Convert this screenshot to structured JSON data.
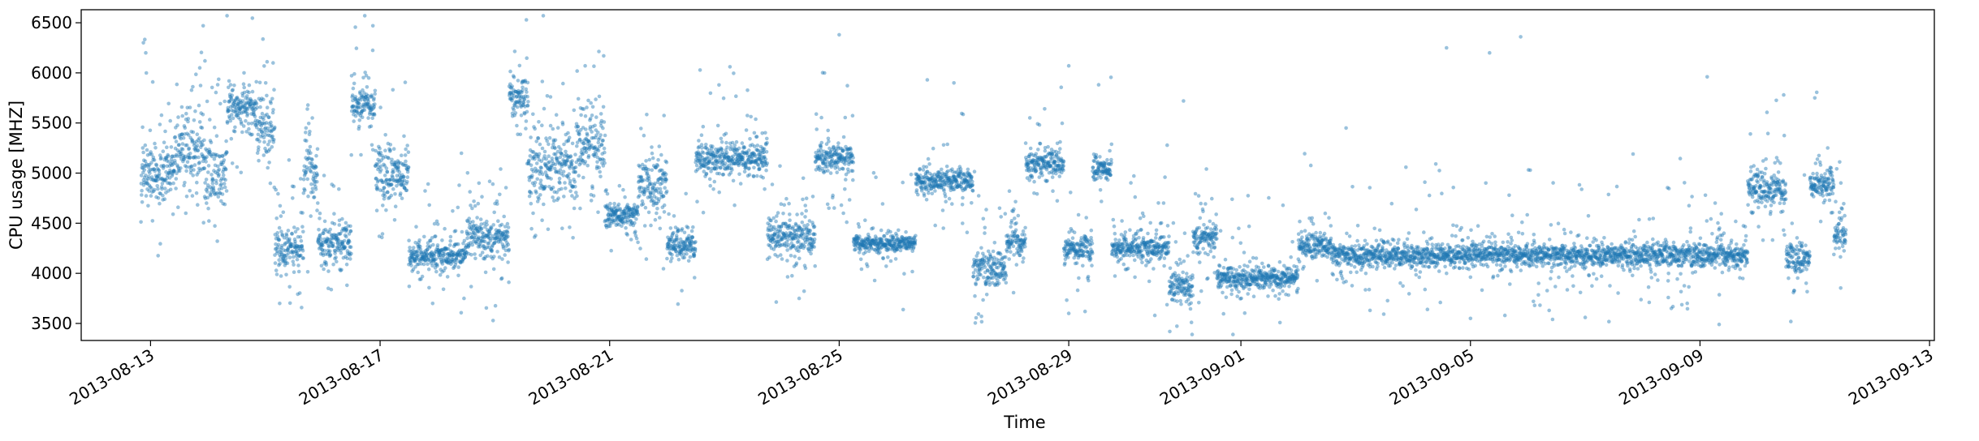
{
  "chart_data": {
    "type": "scatter",
    "title": "",
    "xlabel": "Time",
    "ylabel": "CPU usage [MHZ]",
    "x_axis_type": "date",
    "xlim": [
      "2013-08-11T19:00",
      "2013-09-13T02:00"
    ],
    "ylim": [
      3330,
      6630
    ],
    "x_ticks": [
      "2013-08-13",
      "2013-08-17",
      "2013-08-21",
      "2013-08-25",
      "2013-08-29",
      "2013-09-01",
      "2013-09-05",
      "2013-09-09",
      "2013-09-13"
    ],
    "y_ticks": [
      3500,
      4000,
      4500,
      5000,
      5500,
      6000,
      6500
    ],
    "grid": false,
    "legend": "none",
    "marker_color": "#1f77b4",
    "marker_alpha": 0.45,
    "series": [
      {
        "x_start": "2013-08-12T20:00",
        "x_end": "2013-09-11T13:00",
        "sampling": "every 5 minutes",
        "level_profile": [
          {
            "from": "2013-08-12T20:00",
            "to": "2013-08-13T10:00",
            "level": 5000,
            "spread": 320
          },
          {
            "from": "2013-08-13T10:00",
            "to": "2013-08-13T22:00",
            "level": 5250,
            "spread": 380
          },
          {
            "from": "2013-08-13T22:00",
            "to": "2013-08-14T08:00",
            "level": 5000,
            "spread": 340
          },
          {
            "from": "2013-08-14T08:00",
            "to": "2013-08-14T20:00",
            "level": 5650,
            "spread": 220
          },
          {
            "from": "2013-08-14T20:00",
            "to": "2013-08-15T04:00",
            "level": 5450,
            "spread": 340
          },
          {
            "from": "2013-08-15T04:00",
            "to": "2013-08-15T16:00",
            "level": 4250,
            "spread": 220
          },
          {
            "from": "2013-08-15T16:00",
            "to": "2013-08-15T22:00",
            "level": 5000,
            "spread": 300
          },
          {
            "from": "2013-08-15T22:00",
            "to": "2013-08-16T12:00",
            "level": 4300,
            "spread": 240
          },
          {
            "from": "2013-08-16T12:00",
            "to": "2013-08-16T22:00",
            "level": 5700,
            "spread": 220
          },
          {
            "from": "2013-08-16T22:00",
            "to": "2013-08-17T12:00",
            "level": 5000,
            "spread": 300
          },
          {
            "from": "2013-08-17T12:00",
            "to": "2013-08-18T12:00",
            "level": 4180,
            "spread": 130
          },
          {
            "from": "2013-08-18T12:00",
            "to": "2013-08-19T06:00",
            "level": 4350,
            "spread": 230
          },
          {
            "from": "2013-08-19T06:00",
            "to": "2013-08-19T14:00",
            "level": 5750,
            "spread": 200
          },
          {
            "from": "2013-08-19T14:00",
            "to": "2013-08-20T10:00",
            "level": 5100,
            "spread": 380
          },
          {
            "from": "2013-08-20T10:00",
            "to": "2013-08-20T22:00",
            "level": 5300,
            "spread": 420
          },
          {
            "from": "2013-08-20T22:00",
            "to": "2013-08-21T12:00",
            "level": 4580,
            "spread": 120
          },
          {
            "from": "2013-08-21T12:00",
            "to": "2013-08-22T00:00",
            "level": 4900,
            "spread": 300
          },
          {
            "from": "2013-08-22T00:00",
            "to": "2013-08-22T12:00",
            "level": 4280,
            "spread": 140
          },
          {
            "from": "2013-08-22T12:00",
            "to": "2013-08-23T18:00",
            "level": 5150,
            "spread": 170
          },
          {
            "from": "2013-08-23T18:00",
            "to": "2013-08-24T14:00",
            "level": 4350,
            "spread": 220
          },
          {
            "from": "2013-08-24T14:00",
            "to": "2013-08-25T06:00",
            "level": 5150,
            "spread": 160
          },
          {
            "from": "2013-08-25T06:00",
            "to": "2013-08-26T08:00",
            "level": 4300,
            "spread": 90
          },
          {
            "from": "2013-08-26T08:00",
            "to": "2013-08-27T08:00",
            "level": 4920,
            "spread": 110
          },
          {
            "from": "2013-08-27T08:00",
            "to": "2013-08-27T22:00",
            "level": 4050,
            "spread": 180
          },
          {
            "from": "2013-08-27T22:00",
            "to": "2013-08-28T06:00",
            "level": 4300,
            "spread": 150
          },
          {
            "from": "2013-08-28T06:00",
            "to": "2013-08-28T22:00",
            "level": 5100,
            "spread": 160
          },
          {
            "from": "2013-08-28T22:00",
            "to": "2013-08-29T10:00",
            "level": 4250,
            "spread": 140
          },
          {
            "from": "2013-08-29T10:00",
            "to": "2013-08-29T18:00",
            "level": 5050,
            "spread": 140
          },
          {
            "from": "2013-08-29T18:00",
            "to": "2013-08-30T18:00",
            "level": 4260,
            "spread": 120
          },
          {
            "from": "2013-08-30T18:00",
            "to": "2013-08-31T04:00",
            "level": 3850,
            "spread": 180
          },
          {
            "from": "2013-08-31T04:00",
            "to": "2013-08-31T14:00",
            "level": 4350,
            "spread": 180
          },
          {
            "from": "2013-08-31T14:00",
            "to": "2013-09-02T00:00",
            "level": 3960,
            "spread": 110
          },
          {
            "from": "2013-09-02T00:00",
            "to": "2013-09-02T14:00",
            "level": 4280,
            "spread": 130
          },
          {
            "from": "2013-09-02T14:00",
            "to": "2013-09-09T20:00",
            "level": 4180,
            "spread": 120
          },
          {
            "from": "2013-09-09T20:00",
            "to": "2013-09-10T12:00",
            "level": 4850,
            "spread": 220
          },
          {
            "from": "2013-09-10T12:00",
            "to": "2013-09-10T22:00",
            "level": 4150,
            "spread": 160
          },
          {
            "from": "2013-09-10T22:00",
            "to": "2013-09-11T08:00",
            "level": 4900,
            "spread": 160
          },
          {
            "from": "2013-09-11T08:00",
            "to": "2013-09-11T13:00",
            "level": 4400,
            "spread": 220
          }
        ],
        "outliers": [
          {
            "x": "2013-08-13T22:00",
            "y": 6470
          },
          {
            "x": "2013-08-16T21:00",
            "y": 6470
          },
          {
            "x": "2013-08-25T00:00",
            "y": 6380
          },
          {
            "x": "2013-09-04T14:00",
            "y": 6250
          },
          {
            "x": "2013-09-05T08:00",
            "y": 6200
          },
          {
            "x": "2013-09-05T21:00",
            "y": 6360
          },
          {
            "x": "2013-08-29T00:00",
            "y": 6070
          },
          {
            "x": "2013-09-09T03:00",
            "y": 5960
          },
          {
            "x": "2013-09-10T11:00",
            "y": 5780
          },
          {
            "x": "2013-09-11T00:00",
            "y": 5750
          },
          {
            "x": "2013-08-27T00:00",
            "y": 5900
          },
          {
            "x": "2013-08-15T06:00",
            "y": 3700
          },
          {
            "x": "2013-08-17T22:00",
            "y": 3700
          },
          {
            "x": "2013-08-29T00:00",
            "y": 3600
          },
          {
            "x": "2013-09-03T06:00",
            "y": 3630
          },
          {
            "x": "2013-09-04T06:00",
            "y": 3640
          },
          {
            "x": "2013-09-05T00:00",
            "y": 3550
          },
          {
            "x": "2013-09-07T00:00",
            "y": 3560
          },
          {
            "x": "2013-09-08T12:00",
            "y": 3650
          },
          {
            "x": "2013-09-09T08:00",
            "y": 3490
          },
          {
            "x": "2013-08-30T12:00",
            "y": 3580
          },
          {
            "x": "2013-08-31T00:00",
            "y": 5720
          },
          {
            "x": "2013-09-02T20:00",
            "y": 5450
          },
          {
            "x": "2013-08-12T21:00",
            "y": 6300
          },
          {
            "x": "2013-08-12T22:00",
            "y": 6200
          }
        ]
      }
    ]
  }
}
